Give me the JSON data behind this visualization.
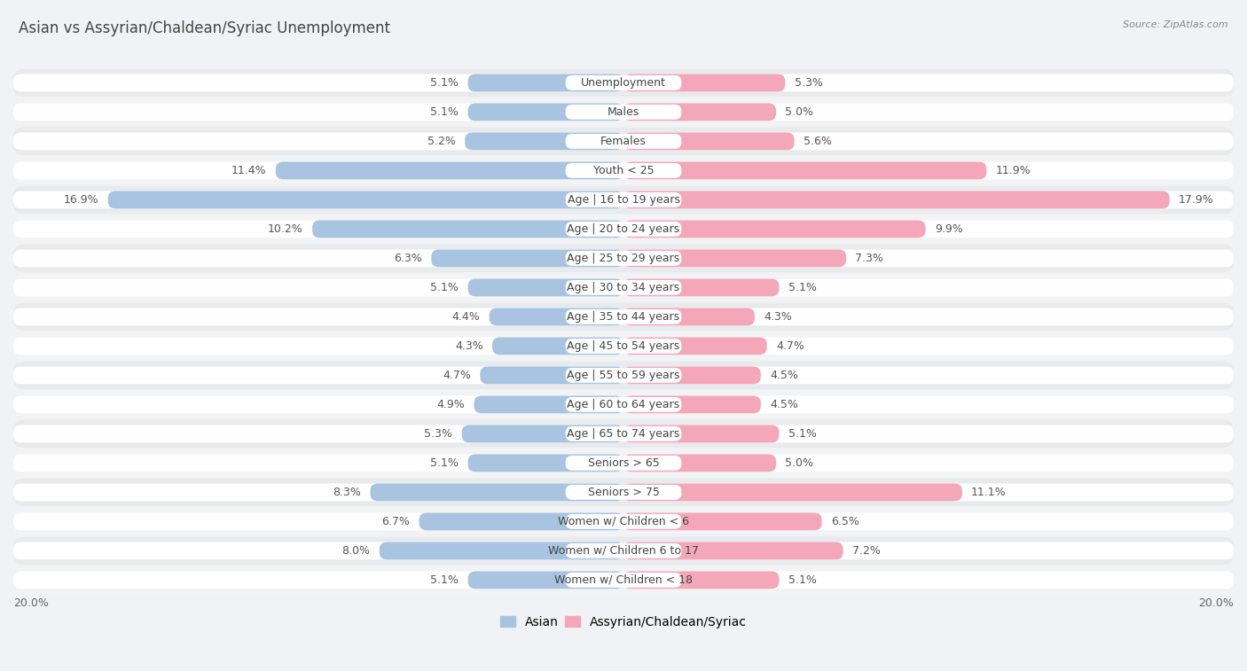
{
  "title": "Asian vs Assyrian/Chaldean/Syriac Unemployment",
  "source": "Source: ZipAtlas.com",
  "categories": [
    "Unemployment",
    "Males",
    "Females",
    "Youth < 25",
    "Age | 16 to 19 years",
    "Age | 20 to 24 years",
    "Age | 25 to 29 years",
    "Age | 30 to 34 years",
    "Age | 35 to 44 years",
    "Age | 45 to 54 years",
    "Age | 55 to 59 years",
    "Age | 60 to 64 years",
    "Age | 65 to 74 years",
    "Seniors > 65",
    "Seniors > 75",
    "Women w/ Children < 6",
    "Women w/ Children 6 to 17",
    "Women w/ Children < 18"
  ],
  "asian_values": [
    5.1,
    5.1,
    5.2,
    11.4,
    16.9,
    10.2,
    6.3,
    5.1,
    4.4,
    4.3,
    4.7,
    4.9,
    5.3,
    5.1,
    8.3,
    6.7,
    8.0,
    5.1
  ],
  "assyrian_values": [
    5.3,
    5.0,
    5.6,
    11.9,
    17.9,
    9.9,
    7.3,
    5.1,
    4.3,
    4.7,
    4.5,
    4.5,
    5.1,
    5.0,
    11.1,
    6.5,
    7.2,
    5.1
  ],
  "asian_color": "#a8c4e0",
  "assyrian_color": "#f4a7b9",
  "row_color_odd": "#e8eaed",
  "row_color_even": "#f2f3f5",
  "bar_bg_color": "#ffffff",
  "label_pill_color": "#ffffff",
  "max_val": 20.0,
  "label_fontsize": 9.0,
  "category_fontsize": 9.0,
  "title_fontsize": 12,
  "source_fontsize": 8
}
